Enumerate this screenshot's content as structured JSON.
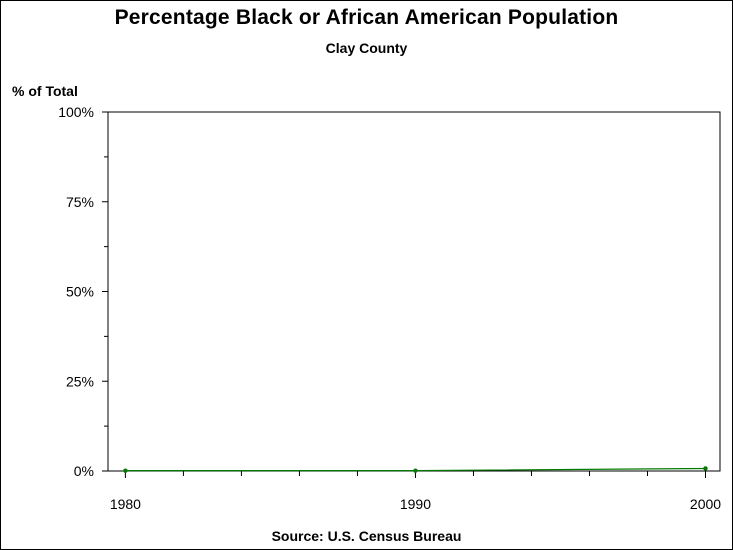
{
  "chart_data": {
    "type": "line",
    "title": "Percentage Black or African American Population",
    "subtitle": "Clay County",
    "ylabel": "% of Total",
    "xlabel": "",
    "footnote": "Source: U.S. Census Bureau",
    "x": [
      1980,
      1990,
      2000
    ],
    "series": [
      {
        "values": [
          0.1,
          0.1,
          0.7
        ]
      }
    ],
    "xlim": [
      1979.4,
      2000.5
    ],
    "ylim": [
      0,
      100
    ],
    "x_ticks": [
      1980,
      1990,
      2000
    ],
    "x_tick_labels": [
      "1980",
      "1990",
      "2000"
    ],
    "x_minor_ticks": [
      1982,
      1984,
      1986,
      1988,
      1992,
      1994,
      1996,
      1998
    ],
    "y_ticks": [
      0,
      25,
      50,
      75,
      100
    ],
    "y_tick_labels": [
      "0%",
      "25%",
      "50%",
      "75%",
      "100%"
    ],
    "y_minor_ticks": [
      12.5,
      37.5,
      62.5,
      87.5
    ],
    "grid": false,
    "line_color": "#007a00"
  }
}
